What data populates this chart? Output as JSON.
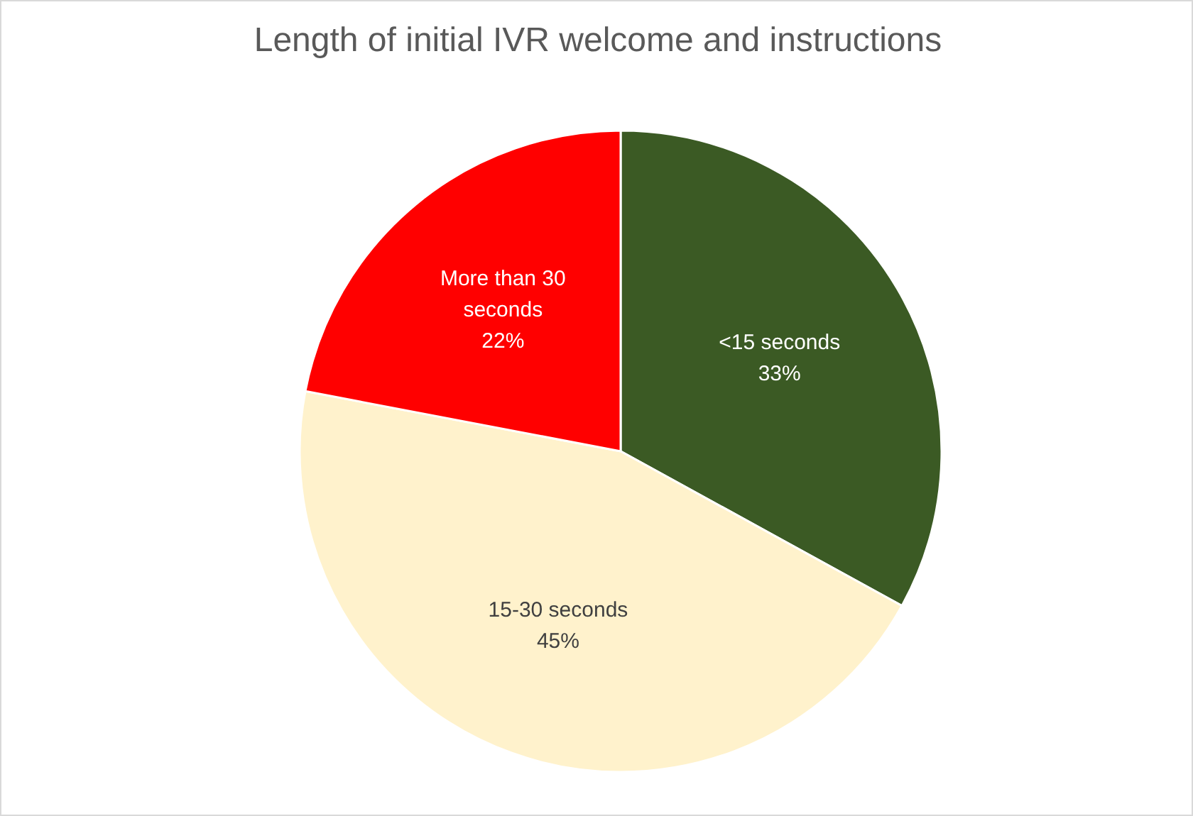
{
  "chart_data": {
    "type": "pie",
    "title": "Length of initial IVR welcome and instructions",
    "categories": [
      "<15 seconds",
      "15-30 seconds",
      "More than 30 seconds"
    ],
    "values": [
      33,
      45,
      22
    ],
    "colors": [
      "#3b5a24",
      "#fff2cc",
      "#ff0000"
    ],
    "value_labels": [
      "33%",
      "45%",
      "22%"
    ]
  }
}
